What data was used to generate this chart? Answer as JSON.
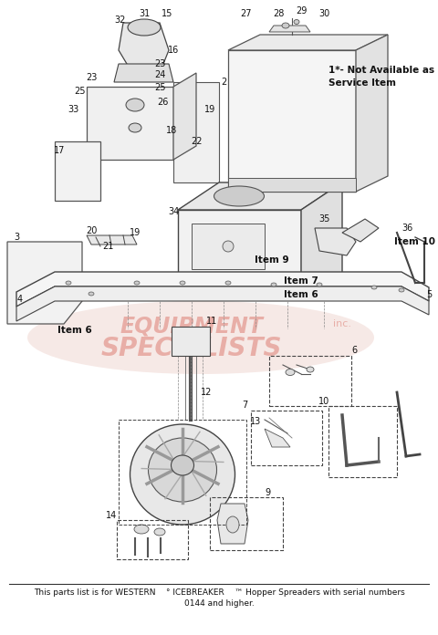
{
  "bg_color": "#ffffff",
  "footer_line1": "This parts list is for WESTERN    ° ICEBREAKER    ™ Hopper Spreaders with serial numbers",
  "footer_line2": "0144 and higher.",
  "note_text": "1*- Not Available as a\nService Item",
  "watermark_color": "#d4574a",
  "fig_w": 4.8,
  "fig_h": 6.96,
  "dpi": 100
}
